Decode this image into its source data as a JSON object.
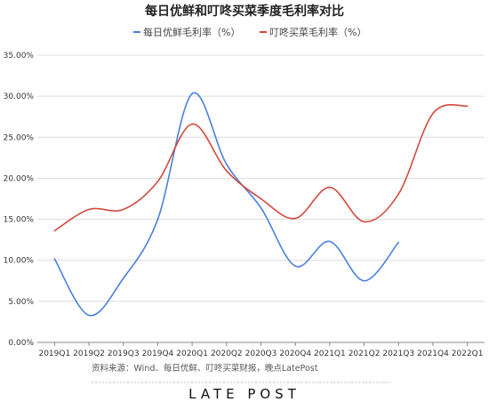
{
  "chart_data": {
    "type": "line",
    "title": "每日优鲜和叮咚买菜季度毛利率对比",
    "categories": [
      "2019Q1",
      "2019Q2",
      "2019Q3",
      "2019Q4",
      "2020Q1",
      "2020Q2",
      "2020Q3",
      "2020Q4",
      "2021Q1",
      "2021Q2",
      "2021Q3",
      "2021Q4",
      "2022Q1"
    ],
    "y_ticks": [
      "0.00%",
      "5.00%",
      "10.00%",
      "15.00%",
      "20.00%",
      "25.00%",
      "30.00%",
      "35.00%"
    ],
    "ylim": [
      0,
      35
    ],
    "grid": true,
    "legend_position": "top-center",
    "series": [
      {
        "name": "每日优鲜毛利率（%）",
        "color": "#4a7fe0",
        "values": [
          10.2,
          3.3,
          7.8,
          15.0,
          30.3,
          21.7,
          16.4,
          9.3,
          12.3,
          7.5,
          12.2,
          null,
          null
        ]
      },
      {
        "name": "叮咚买菜毛利率（%）",
        "color": "#d24a3e",
        "values": [
          13.6,
          16.2,
          16.2,
          19.6,
          26.6,
          20.9,
          17.5,
          15.1,
          18.9,
          14.7,
          18.1,
          27.9,
          28.8
        ]
      }
    ]
  },
  "source_text": "资料来源：Wind、每日优鲜、叮咚买菜财报，晚点LatePost",
  "brand": "LATE POST"
}
